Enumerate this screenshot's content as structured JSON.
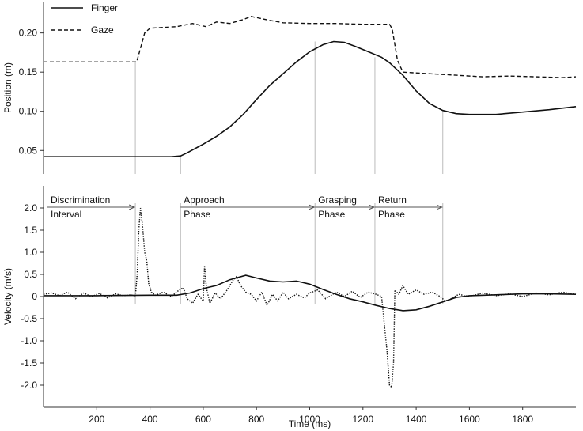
{
  "chart_data": [
    {
      "type": "line",
      "panel": "position",
      "ylabel": "Position (m)",
      "ylim": [
        0.02,
        0.24
      ],
      "yticks": [
        "0.05",
        "0.10",
        "0.15",
        "0.20"
      ],
      "legend": [
        {
          "name": "Finger",
          "style": "solid"
        },
        {
          "name": "Gaze",
          "style": "dashed"
        }
      ],
      "series": [
        {
          "name": "Finger",
          "style": "solid",
          "points": [
            [
              0,
              0.042
            ],
            [
              100,
              0.042
            ],
            [
              200,
              0.042
            ],
            [
              300,
              0.042
            ],
            [
              400,
              0.042
            ],
            [
              480,
              0.042
            ],
            [
              515,
              0.043
            ],
            [
              540,
              0.047
            ],
            [
              600,
              0.058
            ],
            [
              650,
              0.068
            ],
            [
              700,
              0.08
            ],
            [
              750,
              0.096
            ],
            [
              800,
              0.115
            ],
            [
              850,
              0.133
            ],
            [
              900,
              0.148
            ],
            [
              950,
              0.163
            ],
            [
              1000,
              0.176
            ],
            [
              1050,
              0.185
            ],
            [
              1090,
              0.189
            ],
            [
              1130,
              0.188
            ],
            [
              1170,
              0.183
            ],
            [
              1220,
              0.176
            ],
            [
              1270,
              0.169
            ],
            [
              1300,
              0.162
            ],
            [
              1350,
              0.146
            ],
            [
              1400,
              0.126
            ],
            [
              1450,
              0.11
            ],
            [
              1500,
              0.101
            ],
            [
              1550,
              0.097
            ],
            [
              1600,
              0.096
            ],
            [
              1700,
              0.096
            ],
            [
              1800,
              0.099
            ],
            [
              1900,
              0.102
            ],
            [
              2000,
              0.106
            ]
          ]
        },
        {
          "name": "Gaze",
          "style": "dashed",
          "points": [
            [
              0,
              0.163
            ],
            [
              100,
              0.163
            ],
            [
              200,
              0.163
            ],
            [
              300,
              0.163
            ],
            [
              350,
              0.163
            ],
            [
              360,
              0.175
            ],
            [
              380,
              0.2
            ],
            [
              400,
              0.206
            ],
            [
              500,
              0.208
            ],
            [
              560,
              0.212
            ],
            [
              610,
              0.208
            ],
            [
              650,
              0.214
            ],
            [
              700,
              0.212
            ],
            [
              750,
              0.217
            ],
            [
              780,
              0.221
            ],
            [
              850,
              0.216
            ],
            [
              900,
              0.213
            ],
            [
              1000,
              0.212
            ],
            [
              1100,
              0.212
            ],
            [
              1200,
              0.211
            ],
            [
              1300,
              0.211
            ],
            [
              1310,
              0.205
            ],
            [
              1330,
              0.165
            ],
            [
              1350,
              0.15
            ],
            [
              1450,
              0.148
            ],
            [
              1550,
              0.146
            ],
            [
              1650,
              0.144
            ],
            [
              1750,
              0.145
            ],
            [
              1850,
              0.144
            ],
            [
              1950,
              0.143
            ],
            [
              2000,
              0.144
            ]
          ]
        }
      ]
    },
    {
      "type": "line",
      "panel": "velocity",
      "ylabel": "Velocity  (m/s)",
      "xlabel": "Time (ms)",
      "ylim": [
        -2.5,
        2.5
      ],
      "xlim": [
        0,
        2000
      ],
      "xticks": [
        "200",
        "400",
        "600",
        "800",
        "1000",
        "1200",
        "1400",
        "1600",
        "1800"
      ],
      "yticks": [
        "2.0",
        "1.5",
        "1.0",
        "0.5",
        "0",
        "-0.5",
        "-1.0",
        "-1.5",
        "-2.0"
      ],
      "phases": [
        {
          "line1": "Discrimination",
          "line2": "Interval",
          "start": 0,
          "end": 345
        },
        {
          "line1": "Approach",
          "line2": "Phase",
          "start": 515,
          "end": 1020
        },
        {
          "line1": "Grasping",
          "line2": "Phase",
          "start": 1020,
          "end": 1245
        },
        {
          "line1": "Return",
          "line2": "Phase",
          "start": 1245,
          "end": 1500
        }
      ],
      "phase_boundaries": [
        345,
        515,
        1020,
        1245,
        1500
      ],
      "series": [
        {
          "name": "Finger",
          "style": "solid",
          "points": [
            [
              0,
              0.02
            ],
            [
              200,
              0.02
            ],
            [
              400,
              0.03
            ],
            [
              500,
              0.03
            ],
            [
              550,
              0.08
            ],
            [
              600,
              0.18
            ],
            [
              650,
              0.25
            ],
            [
              700,
              0.38
            ],
            [
              760,
              0.48
            ],
            [
              800,
              0.42
            ],
            [
              850,
              0.35
            ],
            [
              900,
              0.33
            ],
            [
              950,
              0.35
            ],
            [
              1000,
              0.28
            ],
            [
              1050,
              0.16
            ],
            [
              1100,
              0.05
            ],
            [
              1150,
              -0.05
            ],
            [
              1200,
              -0.12
            ],
            [
              1250,
              -0.2
            ],
            [
              1300,
              -0.27
            ],
            [
              1350,
              -0.32
            ],
            [
              1400,
              -0.3
            ],
            [
              1450,
              -0.22
            ],
            [
              1500,
              -0.12
            ],
            [
              1550,
              -0.02
            ],
            [
              1600,
              0.02
            ],
            [
              1700,
              0.04
            ],
            [
              1800,
              0.06
            ],
            [
              1900,
              0.06
            ],
            [
              2000,
              0.05
            ]
          ]
        },
        {
          "name": "Gaze",
          "style": "dotted",
          "points": [
            [
              0,
              0.05
            ],
            [
              30,
              0.08
            ],
            [
              60,
              0.02
            ],
            [
              90,
              0.1
            ],
            [
              120,
              -0.05
            ],
            [
              150,
              0.08
            ],
            [
              180,
              0.0
            ],
            [
              210,
              0.07
            ],
            [
              240,
              -0.03
            ],
            [
              270,
              0.06
            ],
            [
              300,
              0.02
            ],
            [
              330,
              0.04
            ],
            [
              345,
              0.0
            ],
            [
              352,
              0.5
            ],
            [
              358,
              1.5
            ],
            [
              364,
              2.0
            ],
            [
              372,
              1.6
            ],
            [
              380,
              1.0
            ],
            [
              388,
              0.8
            ],
            [
              395,
              0.3
            ],
            [
              405,
              0.1
            ],
            [
              420,
              0.03
            ],
            [
              450,
              0.1
            ],
            [
              480,
              0.0
            ],
            [
              510,
              0.15
            ],
            [
              525,
              0.2
            ],
            [
              540,
              -0.05
            ],
            [
              560,
              -0.15
            ],
            [
              580,
              0.05
            ],
            [
              600,
              -0.1
            ],
            [
              605,
              0.7
            ],
            [
              612,
              0.2
            ],
            [
              625,
              -0.15
            ],
            [
              645,
              0.08
            ],
            [
              665,
              -0.05
            ],
            [
              690,
              0.15
            ],
            [
              710,
              0.35
            ],
            [
              725,
              0.45
            ],
            [
              740,
              0.25
            ],
            [
              760,
              0.1
            ],
            [
              780,
              0.05
            ],
            [
              800,
              -0.1
            ],
            [
              820,
              0.1
            ],
            [
              840,
              -0.2
            ],
            [
              860,
              0.05
            ],
            [
              880,
              -0.1
            ],
            [
              900,
              0.1
            ],
            [
              920,
              -0.05
            ],
            [
              950,
              0.05
            ],
            [
              980,
              -0.03
            ],
            [
              1000,
              0.08
            ],
            [
              1030,
              0.15
            ],
            [
              1060,
              -0.05
            ],
            [
              1100,
              0.1
            ],
            [
              1130,
              0.0
            ],
            [
              1160,
              0.12
            ],
            [
              1190,
              -0.02
            ],
            [
              1220,
              0.1
            ],
            [
              1250,
              0.05
            ],
            [
              1270,
              0.0
            ],
            [
              1280,
              -0.6
            ],
            [
              1290,
              -1.2
            ],
            [
              1300,
              -2.0
            ],
            [
              1308,
              -2.05
            ],
            [
              1315,
              -1.5
            ],
            [
              1320,
              0.15
            ],
            [
              1335,
              0.05
            ],
            [
              1350,
              0.25
            ],
            [
              1370,
              0.05
            ],
            [
              1400,
              0.15
            ],
            [
              1430,
              0.05
            ],
            [
              1460,
              0.1
            ],
            [
              1490,
              0.0
            ],
            [
              1510,
              -0.1
            ],
            [
              1530,
              -0.05
            ],
            [
              1560,
              0.05
            ],
            [
              1600,
              0.0
            ],
            [
              1650,
              0.08
            ],
            [
              1700,
              0.02
            ],
            [
              1750,
              0.06
            ],
            [
              1800,
              0.0
            ],
            [
              1850,
              0.08
            ],
            [
              1900,
              0.04
            ],
            [
              1950,
              0.1
            ],
            [
              2000,
              0.05
            ]
          ]
        }
      ]
    }
  ]
}
